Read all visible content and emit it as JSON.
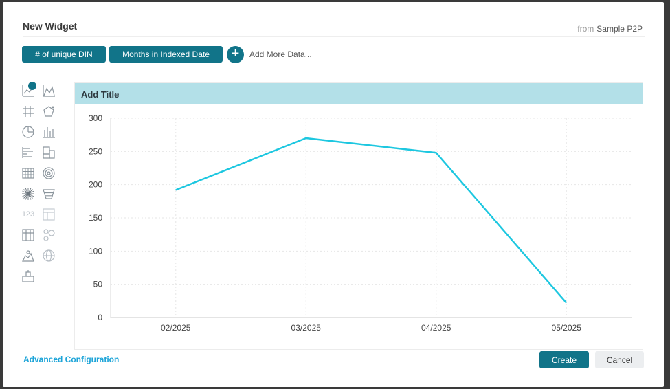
{
  "dialog": {
    "title": "New Widget",
    "source_prefix": "from",
    "source_name": "Sample P2P"
  },
  "data_panel": {
    "pills": [
      "# of unique DIN",
      "Months in Indexed Date"
    ],
    "add_icon": "plus-icon",
    "add_more_label": "Add More Data..."
  },
  "widget_types": [
    {
      "name": "line-chart-icon",
      "selected": true
    },
    {
      "name": "area-chart-icon",
      "selected": false
    },
    {
      "name": "pivot-table-icon",
      "selected": false
    },
    {
      "name": "polar-chart-icon",
      "selected": false
    },
    {
      "name": "pie-chart-icon",
      "selected": false
    },
    {
      "name": "column-chart-icon",
      "selected": false
    },
    {
      "name": "bar-chart-icon",
      "selected": false
    },
    {
      "name": "treemap-icon",
      "selected": false
    },
    {
      "name": "heatmap-icon",
      "selected": false
    },
    {
      "name": "sunburst-icon",
      "selected": false
    },
    {
      "name": "scatter-star-icon",
      "selected": false
    },
    {
      "name": "funnel-icon",
      "selected": false
    },
    {
      "name": "indicator-icon",
      "selected": false,
      "label": "123"
    },
    {
      "name": "table-icon",
      "selected": false
    },
    {
      "name": "table-with-aggregation-icon",
      "selected": false
    },
    {
      "name": "scatter-map-icon",
      "selected": false
    },
    {
      "name": "area-map-icon",
      "selected": false
    },
    {
      "name": "globe-icon",
      "selected": false
    },
    {
      "name": "calendar-heatmap-icon",
      "selected": false
    }
  ],
  "chart_panel": {
    "title_placeholder": "Add Title"
  },
  "chart_data": {
    "type": "line",
    "categories": [
      "02/2025",
      "03/2025",
      "04/2025",
      "05/2025"
    ],
    "series": [
      {
        "values": [
          192,
          270,
          248,
          22
        ],
        "color": "#1dc7e0"
      }
    ],
    "ylim": [
      0,
      300
    ],
    "yticks": [
      0,
      50,
      100,
      150,
      200,
      250,
      300
    ],
    "grid": true,
    "legend": "none"
  },
  "footer": {
    "advanced_label": "Advanced Configuration",
    "create_label": "Create",
    "cancel_label": "Cancel"
  },
  "colors": {
    "primary": "#117489",
    "title_bar": "#b3e0e8",
    "link": "#1ca4d8",
    "line": "#1dc7e0"
  }
}
